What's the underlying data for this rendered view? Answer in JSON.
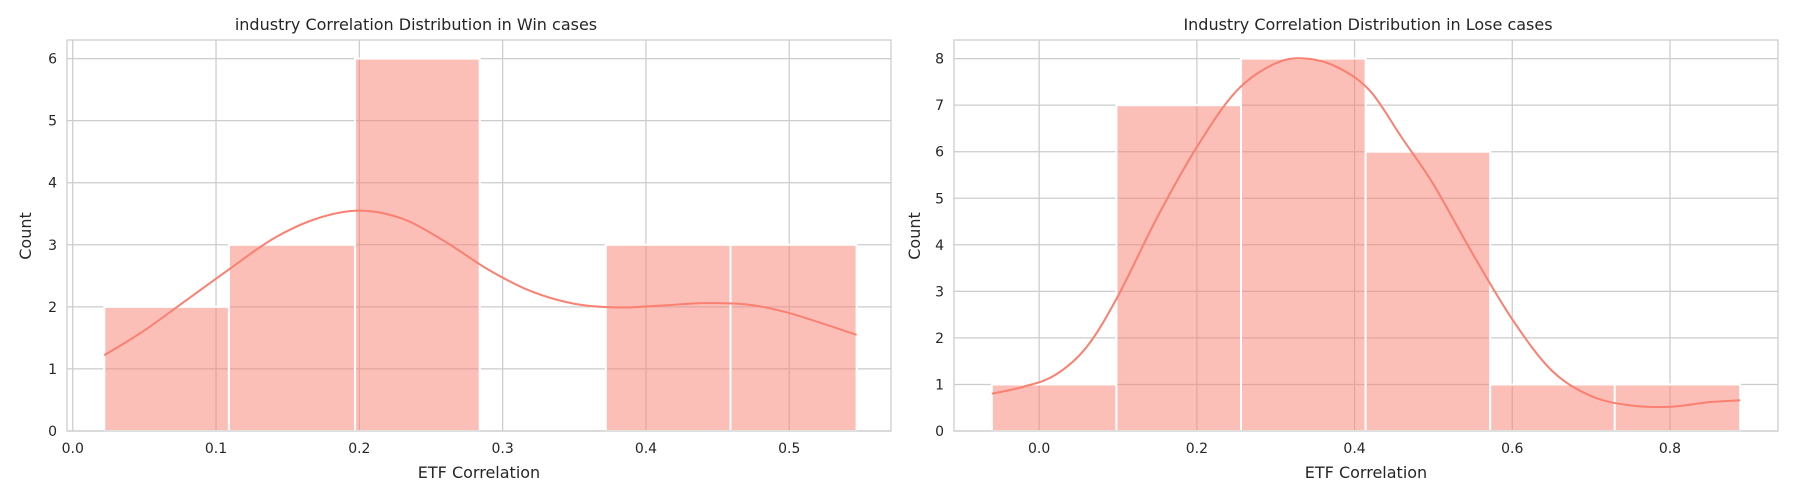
{
  "chart_data": [
    {
      "type": "bar",
      "title": "industry Correlation Distribution in Win cases",
      "xlabel": "ETF Correlation",
      "ylabel": "Count",
      "xlim": [
        -0.004,
        0.571
      ],
      "ylim": [
        0,
        6.3
      ],
      "xticks": [
        0.0,
        0.1,
        0.2,
        0.3,
        0.4,
        0.5
      ],
      "xtick_labels": [
        "0.0",
        "0.1",
        "0.2",
        "0.3",
        "0.4",
        "0.5"
      ],
      "yticks": [
        0,
        1,
        2,
        3,
        4,
        5,
        6
      ],
      "ytick_labels": [
        "0",
        "1",
        "2",
        "3",
        "4",
        "5",
        "6"
      ],
      "bin_edges": [
        0.022,
        0.109,
        0.197,
        0.284,
        0.372,
        0.459,
        0.547
      ],
      "counts": [
        2,
        3,
        6,
        0,
        3,
        3
      ],
      "kde": {
        "x": [
          0.022,
          0.05,
          0.08,
          0.11,
          0.14,
          0.17,
          0.2,
          0.23,
          0.26,
          0.29,
          0.32,
          0.35,
          0.38,
          0.41,
          0.44,
          0.47,
          0.5,
          0.547
        ],
        "y": [
          1.22,
          1.62,
          2.12,
          2.62,
          3.1,
          3.42,
          3.55,
          3.42,
          3.05,
          2.6,
          2.25,
          2.05,
          1.99,
          2.02,
          2.06,
          2.04,
          1.9,
          1.55
        ]
      },
      "grid": true,
      "colors": {
        "bar": "#fa8072",
        "kde": "#fa8072"
      }
    },
    {
      "type": "bar",
      "title": "Industry Correlation Distribution in Lose cases",
      "xlabel": "ETF Correlation",
      "ylabel": "Count",
      "xlim": [
        -0.108,
        0.937
      ],
      "ylim": [
        0,
        8.4
      ],
      "xticks": [
        0.0,
        0.2,
        0.4,
        0.6,
        0.8
      ],
      "xtick_labels": [
        "0.0",
        "0.2",
        "0.4",
        "0.6",
        "0.8"
      ],
      "yticks": [
        0,
        1,
        2,
        3,
        4,
        5,
        6,
        7,
        8
      ],
      "ytick_labels": [
        "0",
        "1",
        "2",
        "3",
        "4",
        "5",
        "6",
        "7",
        "8"
      ],
      "bin_edges": [
        -0.06,
        0.098,
        0.256,
        0.414,
        0.572,
        0.73,
        0.889
      ],
      "counts": [
        1,
        7,
        8,
        6,
        1,
        1
      ],
      "kde": {
        "x": [
          -0.06,
          -0.02,
          0.02,
          0.06,
          0.1,
          0.15,
          0.2,
          0.25,
          0.3,
          0.34,
          0.38,
          0.42,
          0.46,
          0.5,
          0.55,
          0.6,
          0.65,
          0.7,
          0.75,
          0.8,
          0.85,
          0.889
        ],
        "y": [
          0.8,
          0.95,
          1.2,
          1.8,
          2.9,
          4.6,
          6.1,
          7.3,
          7.9,
          8.0,
          7.8,
          7.3,
          6.3,
          5.3,
          3.8,
          2.4,
          1.3,
          0.75,
          0.55,
          0.52,
          0.62,
          0.66
        ]
      },
      "grid": true,
      "colors": {
        "bar": "#fa8072",
        "kde": "#fa8072"
      }
    }
  ]
}
